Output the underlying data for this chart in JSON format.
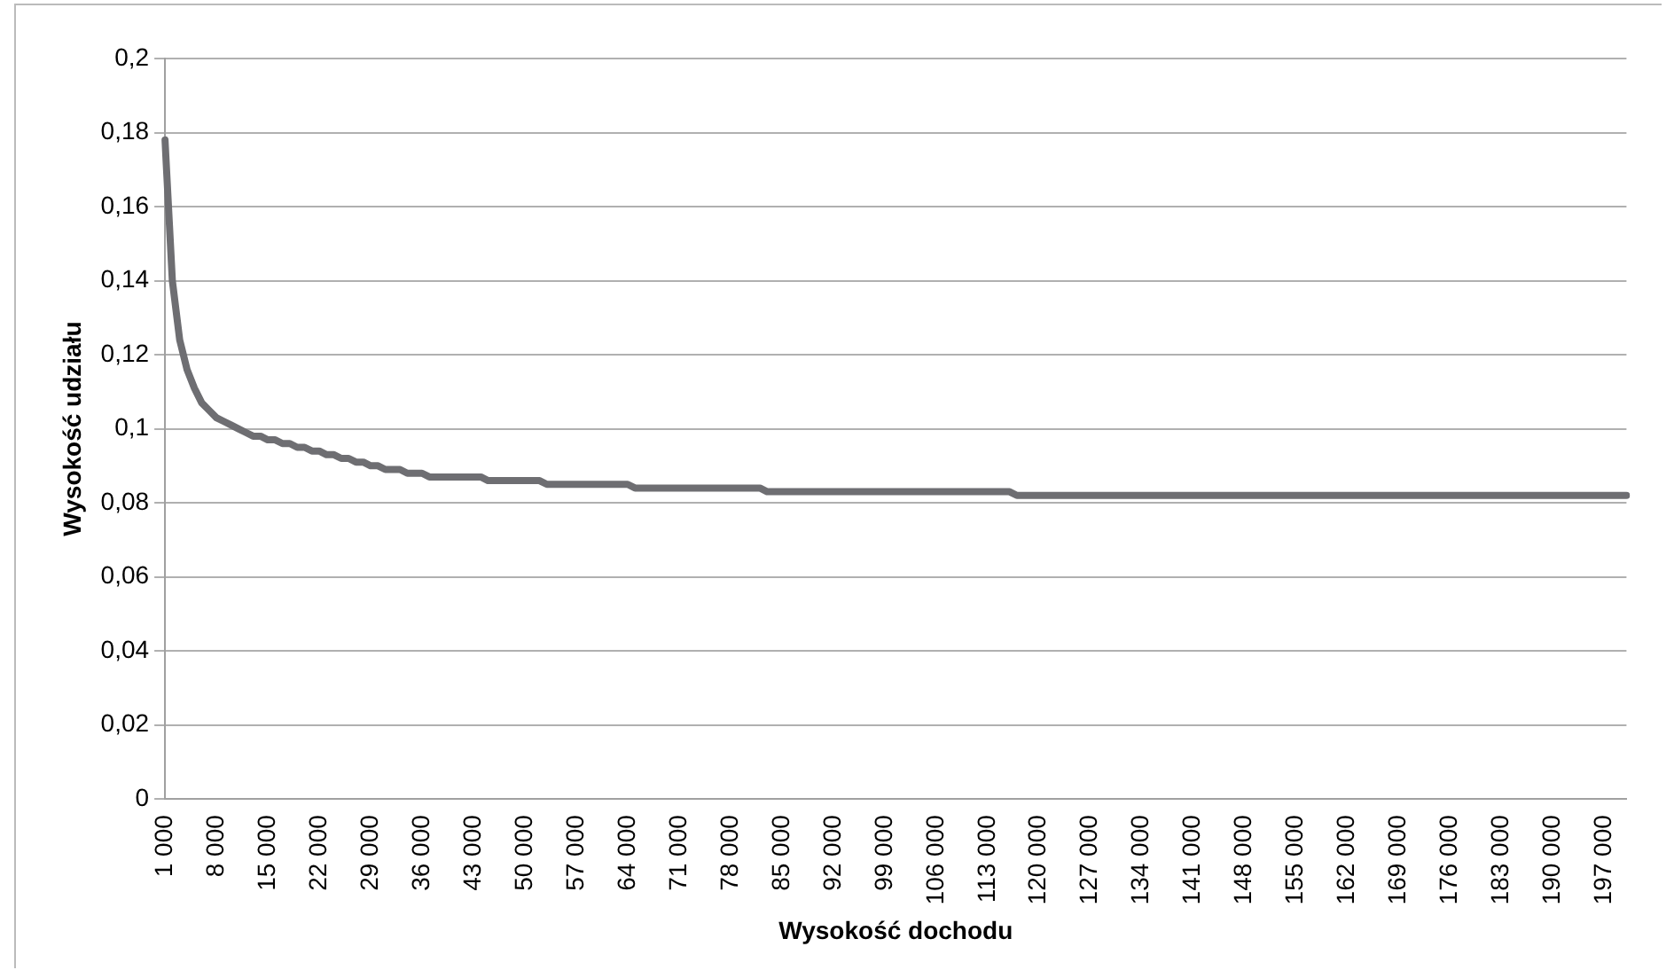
{
  "chart_data": {
    "type": "line",
    "xlabel": "Wysokość dochodu",
    "ylabel": "Wysokość udziału",
    "categories": [
      "1 000",
      null,
      null,
      null,
      null,
      null,
      null,
      "8 000",
      null,
      null,
      null,
      null,
      null,
      null,
      "15 000",
      null,
      null,
      null,
      null,
      null,
      null,
      "22 000",
      null,
      null,
      null,
      null,
      null,
      null,
      "29 000",
      null,
      null,
      null,
      null,
      null,
      null,
      "36 000",
      null,
      null,
      null,
      null,
      null,
      null,
      "43 000",
      null,
      null,
      null,
      null,
      null,
      null,
      "50 000",
      null,
      null,
      null,
      null,
      null,
      null,
      "57 000",
      null,
      null,
      null,
      null,
      null,
      null,
      "64 000",
      null,
      null,
      null,
      null,
      null,
      null,
      "71 000",
      null,
      null,
      null,
      null,
      null,
      null,
      "78 000",
      null,
      null,
      null,
      null,
      null,
      null,
      "85 000",
      null,
      null,
      null,
      null,
      null,
      null,
      "92 000",
      null,
      null,
      null,
      null,
      null,
      null,
      "99 000",
      null,
      null,
      null,
      null,
      null,
      null,
      "106 000",
      null,
      null,
      null,
      null,
      null,
      null,
      "113 000",
      null,
      null,
      null,
      null,
      null,
      null,
      "120 000",
      null,
      null,
      null,
      null,
      null,
      null,
      "127 000",
      null,
      null,
      null,
      null,
      null,
      null,
      "134 000",
      null,
      null,
      null,
      null,
      null,
      null,
      "141 000",
      null,
      null,
      null,
      null,
      null,
      null,
      "148 000",
      null,
      null,
      null,
      null,
      null,
      null,
      "155 000",
      null,
      null,
      null,
      null,
      null,
      null,
      "162 000",
      null,
      null,
      null,
      null,
      null,
      null,
      "169 000",
      null,
      null,
      null,
      null,
      null,
      null,
      "176 000",
      null,
      null,
      null,
      null,
      null,
      null,
      "183 000",
      null,
      null,
      null,
      null,
      null,
      null,
      "190 000",
      null,
      null,
      null,
      null,
      null,
      null,
      "197 000",
      null,
      null,
      null
    ],
    "series": [
      {
        "color": "#6e6e72",
        "values": [
          0.178,
          0.14,
          0.124,
          0.116,
          0.111,
          0.107,
          0.105,
          0.103,
          0.102,
          0.101,
          0.1,
          0.099,
          0.098,
          0.098,
          0.097,
          0.097,
          0.096,
          0.096,
          0.095,
          0.095,
          0.094,
          0.094,
          0.093,
          0.093,
          0.092,
          0.092,
          0.091,
          0.091,
          0.09,
          0.09,
          0.089,
          0.089,
          0.089,
          0.088,
          0.088,
          0.088,
          0.087,
          0.087,
          0.087,
          0.087,
          0.087,
          0.087,
          0.087,
          0.087,
          0.086,
          0.086,
          0.086,
          0.086,
          0.086,
          0.086,
          0.086,
          0.086,
          0.085,
          0.085,
          0.085,
          0.085,
          0.085,
          0.085,
          0.085,
          0.085,
          0.085,
          0.085,
          0.085,
          0.085,
          0.084,
          0.084,
          0.084,
          0.084,
          0.084,
          0.084,
          0.084,
          0.084,
          0.084,
          0.084,
          0.084,
          0.084,
          0.084,
          0.084,
          0.084,
          0.084,
          0.084,
          0.084,
          0.083,
          0.083,
          0.083,
          0.083,
          0.083,
          0.083,
          0.083,
          0.083,
          0.083,
          0.083,
          0.083,
          0.083,
          0.083,
          0.083,
          0.083,
          0.083,
          0.083,
          0.083,
          0.083,
          0.083,
          0.083,
          0.083,
          0.083,
          0.083,
          0.083,
          0.083,
          0.083,
          0.083,
          0.083,
          0.083,
          0.083,
          0.083,
          0.083,
          0.083,
          0.082,
          0.082,
          0.082,
          0.082,
          0.082,
          0.082,
          0.082,
          0.082,
          0.082,
          0.082,
          0.082,
          0.082,
          0.082,
          0.082,
          0.082,
          0.082,
          0.082,
          0.082,
          0.082,
          0.082,
          0.082,
          0.082,
          0.082,
          0.082,
          0.082,
          0.082,
          0.082,
          0.082,
          0.082,
          0.082,
          0.082,
          0.082,
          0.082,
          0.082,
          0.082,
          0.082,
          0.082,
          0.082,
          0.082,
          0.082,
          0.082,
          0.082,
          0.082,
          0.082,
          0.082,
          0.082,
          0.082,
          0.082,
          0.082,
          0.082,
          0.082,
          0.082,
          0.082,
          0.082,
          0.082,
          0.082,
          0.082,
          0.082,
          0.082,
          0.082,
          0.082,
          0.082,
          0.082,
          0.082,
          0.082,
          0.082,
          0.082,
          0.082,
          0.082,
          0.082,
          0.082,
          0.082,
          0.082,
          0.082,
          0.082,
          0.082,
          0.082,
          0.082,
          0.082,
          0.082,
          0.082,
          0.082,
          0.082,
          0.082
        ]
      }
    ],
    "ylim": [
      0,
      0.2
    ],
    "yticks": [
      {
        "value": 0,
        "label": "0"
      },
      {
        "value": 0.02,
        "label": "0,02"
      },
      {
        "value": 0.04,
        "label": "0,04"
      },
      {
        "value": 0.06,
        "label": "0,06"
      },
      {
        "value": 0.08,
        "label": "0,08"
      },
      {
        "value": 0.1,
        "label": "0,1"
      },
      {
        "value": 0.12,
        "label": "0,12"
      },
      {
        "value": 0.14,
        "label": "0,14"
      },
      {
        "value": 0.16,
        "label": "0,16"
      },
      {
        "value": 0.18,
        "label": "0,18"
      },
      {
        "value": 0.2,
        "label": "0,2"
      }
    ],
    "grid": "y",
    "legend": false,
    "marker": "none",
    "line_style": "solid"
  }
}
